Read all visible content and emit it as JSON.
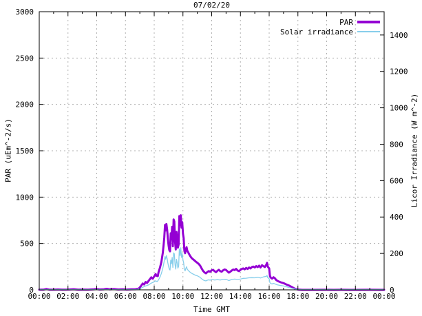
{
  "chart_data": {
    "type": "line",
    "title": "07/02/20",
    "xlabel": "Time GMT",
    "ylabel": "PAR (uEm^-2/s)",
    "y2label": "Licor Irradiance (W m^-2)",
    "xlim_hours": [
      0,
      24
    ],
    "xtick_hours": [
      0,
      2,
      4,
      6,
      8,
      10,
      12,
      14,
      16,
      18,
      20,
      22,
      24
    ],
    "xtick_labels": [
      "00:00",
      "02:00",
      "04:00",
      "06:00",
      "08:00",
      "10:00",
      "12:00",
      "14:00",
      "16:00",
      "18:00",
      "20:00",
      "22:00",
      "00:00"
    ],
    "minor_xtick_step_hours": 1,
    "ylim": [
      0,
      3000
    ],
    "ytick_step": 500,
    "ytick_values": [
      0,
      500,
      1000,
      1500,
      2000,
      2500,
      3000
    ],
    "y2lim": [
      0,
      1528
    ],
    "y2tick_values": [
      0,
      200,
      400,
      600,
      800,
      1000,
      1200,
      1400
    ],
    "grid": true,
    "legend_position": "top-right-inside",
    "colors": {
      "par": "#9400d3",
      "solar": "#87ceeb",
      "grid": "#b0b0b0",
      "axis": "#000000",
      "text": "#000000",
      "background": "#ffffff"
    },
    "legend": {
      "entries": [
        {
          "label": "PAR",
          "color": "#9400d3",
          "line_weight": "thick"
        },
        {
          "label": "Solar irradiance",
          "color": "#87ceeb",
          "line_weight": "thin"
        }
      ]
    },
    "series": [
      {
        "name": "PAR",
        "axis": "left",
        "color": "#9400d3",
        "stroke_width": 3,
        "points": [
          [
            0,
            2
          ],
          [
            0.3,
            2
          ],
          [
            0.5,
            9
          ],
          [
            0.7,
            2
          ],
          [
            1,
            2
          ],
          [
            1.3,
            4
          ],
          [
            1.6,
            2
          ],
          [
            2,
            3
          ],
          [
            2.4,
            7
          ],
          [
            2.7,
            2
          ],
          [
            3,
            3
          ],
          [
            3.4,
            2
          ],
          [
            3.8,
            5
          ],
          [
            4,
            9
          ],
          [
            4.2,
            4
          ],
          [
            4.5,
            6
          ],
          [
            4.7,
            11
          ],
          [
            4.9,
            5
          ],
          [
            5.2,
            8
          ],
          [
            5.5,
            4
          ],
          [
            5.8,
            6
          ],
          [
            6.1,
            3
          ],
          [
            6.4,
            5
          ],
          [
            6.7,
            7
          ],
          [
            6.9,
            12
          ],
          [
            7,
            25
          ],
          [
            7.1,
            45
          ],
          [
            7.2,
            68
          ],
          [
            7.3,
            58
          ],
          [
            7.4,
            85
          ],
          [
            7.5,
            74
          ],
          [
            7.6,
            95
          ],
          [
            7.7,
            115
          ],
          [
            7.8,
            135
          ],
          [
            7.9,
            120
          ],
          [
            8,
            145
          ],
          [
            8.1,
            170
          ],
          [
            8.15,
            152
          ],
          [
            8.25,
            148
          ],
          [
            8.3,
            190
          ],
          [
            8.4,
            240
          ],
          [
            8.5,
            300
          ],
          [
            8.6,
            400
          ],
          [
            8.65,
            480
          ],
          [
            8.7,
            560
          ],
          [
            8.75,
            700
          ],
          [
            8.8,
            640
          ],
          [
            8.85,
            710
          ],
          [
            8.9,
            648
          ],
          [
            8.95,
            558
          ],
          [
            9,
            478
          ],
          [
            9.05,
            430
          ],
          [
            9.1,
            415
          ],
          [
            9.15,
            610
          ],
          [
            9.2,
            545
          ],
          [
            9.25,
            680
          ],
          [
            9.3,
            470
          ],
          [
            9.35,
            760
          ],
          [
            9.4,
            738
          ],
          [
            9.45,
            520
          ],
          [
            9.5,
            435
          ],
          [
            9.55,
            625
          ],
          [
            9.6,
            562
          ],
          [
            9.65,
            455
          ],
          [
            9.7,
            490
          ],
          [
            9.75,
            795
          ],
          [
            9.8,
            698
          ],
          [
            9.85,
            805
          ],
          [
            9.9,
            672
          ],
          [
            9.95,
            730
          ],
          [
            10,
            605
          ],
          [
            10.05,
            558
          ],
          [
            10.1,
            425
          ],
          [
            10.15,
            395
          ],
          [
            10.2,
            435
          ],
          [
            10.25,
            460
          ],
          [
            10.3,
            424
          ],
          [
            10.4,
            394
          ],
          [
            10.5,
            365
          ],
          [
            10.6,
            344
          ],
          [
            10.7,
            330
          ],
          [
            10.8,
            317
          ],
          [
            10.9,
            304
          ],
          [
            11,
            292
          ],
          [
            11.1,
            279
          ],
          [
            11.2,
            260
          ],
          [
            11.3,
            231
          ],
          [
            11.4,
            204
          ],
          [
            11.5,
            188
          ],
          [
            11.6,
            178
          ],
          [
            11.7,
            192
          ],
          [
            11.8,
            202
          ],
          [
            11.9,
            195
          ],
          [
            12,
            211
          ],
          [
            12.1,
            216
          ],
          [
            12.2,
            201
          ],
          [
            12.3,
            191
          ],
          [
            12.4,
            206
          ],
          [
            12.5,
            216
          ],
          [
            12.6,
            201
          ],
          [
            12.7,
            196
          ],
          [
            12.8,
            211
          ],
          [
            12.9,
            220
          ],
          [
            13,
            214
          ],
          [
            13.1,
            199
          ],
          [
            13.2,
            186
          ],
          [
            13.3,
            196
          ],
          [
            13.4,
            209
          ],
          [
            13.5,
            219
          ],
          [
            13.6,
            213
          ],
          [
            13.7,
            226
          ],
          [
            13.8,
            209
          ],
          [
            13.9,
            201
          ],
          [
            14,
            216
          ],
          [
            14.1,
            226
          ],
          [
            14.2,
            231
          ],
          [
            14.3,
            221
          ],
          [
            14.4,
            236
          ],
          [
            14.5,
            225
          ],
          [
            14.6,
            241
          ],
          [
            14.7,
            231
          ],
          [
            14.8,
            246
          ],
          [
            14.9,
            251
          ],
          [
            15,
            241
          ],
          [
            15.1,
            256
          ],
          [
            15.2,
            245
          ],
          [
            15.3,
            261
          ],
          [
            15.4,
            241
          ],
          [
            15.5,
            266
          ],
          [
            15.6,
            255
          ],
          [
            15.7,
            246
          ],
          [
            15.8,
            271
          ],
          [
            15.85,
            291
          ],
          [
            15.9,
            251
          ],
          [
            16,
            231
          ],
          [
            16.05,
            156
          ],
          [
            16.1,
            133
          ],
          [
            16.2,
            121
          ],
          [
            16.3,
            136
          ],
          [
            16.4,
            125
          ],
          [
            16.5,
            105
          ],
          [
            16.6,
            95
          ],
          [
            16.8,
            82
          ],
          [
            17,
            72
          ],
          [
            17.2,
            58
          ],
          [
            17.4,
            45
          ],
          [
            17.6,
            28
          ],
          [
            17.8,
            12
          ],
          [
            18,
            3
          ],
          [
            18.3,
            0
          ],
          [
            19,
            0
          ],
          [
            20,
            1
          ],
          [
            20.5,
            0
          ],
          [
            21,
            1
          ],
          [
            22,
            0
          ],
          [
            23,
            1
          ],
          [
            24,
            0
          ]
        ]
      },
      {
        "name": "Solar irradiance",
        "axis": "right",
        "color": "#87ceeb",
        "stroke_width": 1.3,
        "points": [
          [
            0,
            1
          ],
          [
            1,
            1
          ],
          [
            2,
            1
          ],
          [
            3,
            1
          ],
          [
            4,
            1
          ],
          [
            5,
            1
          ],
          [
            6,
            1
          ],
          [
            6.8,
            2
          ],
          [
            7,
            5
          ],
          [
            7.2,
            14
          ],
          [
            7.4,
            21
          ],
          [
            7.6,
            27
          ],
          [
            7.8,
            37
          ],
          [
            8,
            44
          ],
          [
            8.1,
            50
          ],
          [
            8.2,
            45
          ],
          [
            8.3,
            55
          ],
          [
            8.4,
            70
          ],
          [
            8.5,
            90
          ],
          [
            8.6,
            118
          ],
          [
            8.7,
            158
          ],
          [
            8.75,
            183
          ],
          [
            8.8,
            168
          ],
          [
            8.85,
            188
          ],
          [
            8.9,
            172
          ],
          [
            8.95,
            148
          ],
          [
            9,
            128
          ],
          [
            9.05,
            114
          ],
          [
            9.1,
            109
          ],
          [
            9.15,
            163
          ],
          [
            9.2,
            143
          ],
          [
            9.25,
            178
          ],
          [
            9.3,
            123
          ],
          [
            9.35,
            203
          ],
          [
            9.4,
            198
          ],
          [
            9.45,
            138
          ],
          [
            9.5,
            114
          ],
          [
            9.55,
            168
          ],
          [
            9.6,
            148
          ],
          [
            9.65,
            119
          ],
          [
            9.7,
            129
          ],
          [
            9.75,
            224
          ],
          [
            9.8,
            188
          ],
          [
            9.85,
            231
          ],
          [
            9.9,
            178
          ],
          [
            9.95,
            199
          ],
          [
            10,
            164
          ],
          [
            10.05,
            148
          ],
          [
            10.1,
            113
          ],
          [
            10.15,
            104
          ],
          [
            10.2,
            117
          ],
          [
            10.25,
            127
          ],
          [
            10.3,
            113
          ],
          [
            10.4,
            104
          ],
          [
            10.5,
            97
          ],
          [
            10.6,
            91
          ],
          [
            10.7,
            87
          ],
          [
            10.8,
            83
          ],
          [
            10.9,
            79
          ],
          [
            11,
            77
          ],
          [
            11.1,
            73
          ],
          [
            11.2,
            68
          ],
          [
            11.3,
            61
          ],
          [
            11.4,
            55
          ],
          [
            11.5,
            51
          ],
          [
            11.6,
            49
          ],
          [
            11.7,
            53
          ],
          [
            11.8,
            55
          ],
          [
            11.9,
            53
          ],
          [
            12,
            57
          ],
          [
            12.2,
            54
          ],
          [
            12.4,
            56
          ],
          [
            12.6,
            54
          ],
          [
            12.8,
            57
          ],
          [
            13,
            58
          ],
          [
            13.2,
            51
          ],
          [
            13.4,
            57
          ],
          [
            13.6,
            59
          ],
          [
            13.8,
            57
          ],
          [
            14,
            59
          ],
          [
            14.2,
            63
          ],
          [
            14.4,
            64
          ],
          [
            14.6,
            66
          ],
          [
            14.8,
            67
          ],
          [
            15,
            66
          ],
          [
            15.2,
            69
          ],
          [
            15.4,
            65
          ],
          [
            15.6,
            71
          ],
          [
            15.8,
            74
          ],
          [
            15.85,
            79
          ],
          [
            15.9,
            67
          ],
          [
            16,
            61
          ],
          [
            16.05,
            41
          ],
          [
            16.1,
            35
          ],
          [
            16.2,
            32
          ],
          [
            16.3,
            36
          ],
          [
            16.4,
            33
          ],
          [
            16.5,
            29
          ],
          [
            16.6,
            27
          ],
          [
            16.8,
            24
          ],
          [
            17,
            21
          ],
          [
            17.2,
            17
          ],
          [
            17.4,
            13
          ],
          [
            17.6,
            8
          ],
          [
            17.8,
            4
          ],
          [
            18,
            2
          ],
          [
            18.3,
            1
          ],
          [
            19,
            1
          ],
          [
            20,
            1
          ],
          [
            21,
            1
          ],
          [
            22,
            1
          ],
          [
            23,
            1
          ],
          [
            24,
            1
          ]
        ]
      }
    ]
  }
}
